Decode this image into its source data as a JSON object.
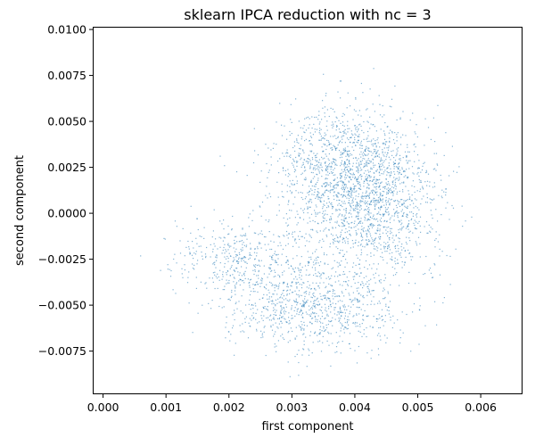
{
  "chart_data": {
    "type": "scatter",
    "title": "sklearn IPCA reduction with nc = 3",
    "xlabel": "first component",
    "ylabel": "second component",
    "xlim": [
      -0.00015,
      0.00665
    ],
    "ylim": [
      -0.0098,
      0.0101
    ],
    "xticks": [
      0.0,
      0.001,
      0.002,
      0.003,
      0.004,
      0.005,
      0.006
    ],
    "xtick_labels": [
      "0.000",
      "0.001",
      "0.002",
      "0.003",
      "0.004",
      "0.005",
      "0.006"
    ],
    "yticks": [
      -0.0075,
      -0.005,
      -0.0025,
      0.0,
      0.0025,
      0.005,
      0.0075,
      0.01
    ],
    "ytick_labels": [
      "−0.0075",
      "−0.0050",
      "−0.0025",
      "0.0000",
      "0.0025",
      "0.0050",
      "0.0075",
      "0.0100"
    ],
    "grid": false,
    "legend": false,
    "marker_color": "#1f77b4",
    "series": [
      {
        "values_summary": "dense point cloud of several thousand samples",
        "clusters": [
          {
            "center": [
              0.0039,
              0.0023
            ],
            "spread": [
              0.00075,
              0.0021
            ],
            "weight": 0.4
          },
          {
            "center": [
              0.0044,
              -0.0004
            ],
            "spread": [
              0.00065,
              0.002
            ],
            "weight": 0.22
          },
          {
            "center": [
              0.0033,
              -0.005
            ],
            "spread": [
              0.00085,
              0.0015
            ],
            "weight": 0.26
          },
          {
            "center": [
              0.0022,
              -0.0024
            ],
            "spread": [
              0.0007,
              0.0014
            ],
            "weight": 0.12
          }
        ],
        "outline": {
          "x_range": [
            0.0002,
            0.0064
          ],
          "y_range": [
            -0.0091,
            0.0091
          ]
        }
      }
    ]
  }
}
